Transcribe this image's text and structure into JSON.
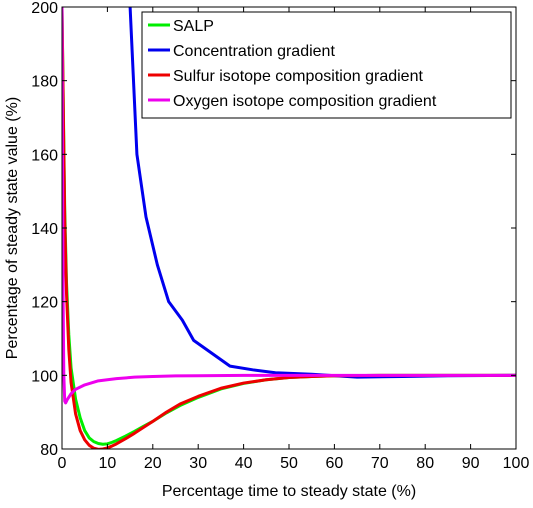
{
  "chart_data": {
    "type": "line",
    "title": "",
    "xlabel": "Percentage time to steady state (%)",
    "ylabel": "Percentage of steady state value (%)",
    "xlim": [
      0,
      100
    ],
    "ylim": [
      80,
      200
    ],
    "xticks": [
      0,
      10,
      20,
      30,
      40,
      50,
      60,
      70,
      80,
      90,
      100
    ],
    "yticks": [
      80,
      100,
      120,
      140,
      160,
      180,
      200
    ],
    "grid": false,
    "legend_position": "top-right",
    "series": [
      {
        "name": "SALP",
        "color": "#00ee00",
        "x": [
          0,
          0.3,
          0.6,
          1,
          1.5,
          2,
          3,
          4,
          5,
          6,
          7,
          8,
          9,
          10,
          11,
          12,
          14,
          16,
          18,
          20,
          23,
          26,
          30,
          35,
          40,
          45,
          50,
          55,
          60,
          70,
          80,
          90,
          100
        ],
        "y": [
          200,
          172,
          145,
          125,
          111,
          102,
          93.5,
          88.5,
          85,
          83,
          82,
          81.5,
          81.3,
          81.4,
          81.8,
          82.3,
          83.5,
          84.8,
          86.2,
          87.5,
          89.8,
          91.8,
          94,
          96.3,
          97.8,
          98.8,
          99.4,
          99.7,
          99.9,
          100,
          100,
          100,
          100
        ]
      },
      {
        "name": "Concentration gradient",
        "color": "#0000ee",
        "x": [
          15,
          16.5,
          18.5,
          21,
          23.5,
          26.5,
          29,
          33,
          37,
          42,
          47,
          55,
          65,
          75,
          85,
          100
        ],
        "y": [
          200,
          160,
          143,
          130,
          120,
          115,
          109.5,
          106,
          102.5,
          101.5,
          100.7,
          100.3,
          99.5,
          99.7,
          99.9,
          100
        ]
      },
      {
        "name": "Sulfur isotope composition gradient",
        "color": "#ee0000",
        "x": [
          0,
          0.3,
          0.6,
          1,
          1.5,
          2,
          3,
          4,
          5,
          6,
          7,
          8,
          9,
          10,
          11,
          12,
          14,
          16,
          18,
          20,
          23,
          26,
          30,
          35,
          40,
          45,
          50,
          55,
          60,
          70,
          80,
          90,
          100
        ],
        "y": [
          200,
          170,
          142,
          122,
          107,
          98,
          89.5,
          85,
          82.5,
          81,
          80.2,
          79.9,
          80,
          80.3,
          80.8,
          81.4,
          82.8,
          84.3,
          85.9,
          87.5,
          90,
          92.2,
          94.3,
          96.5,
          97.9,
          98.8,
          99.4,
          99.7,
          99.9,
          100,
          100,
          100,
          100
        ]
      },
      {
        "name": "Oxygen isotope composition gradient",
        "color": "#ee00ee",
        "x": [
          0,
          0.1,
          0.25,
          0.4,
          0.6,
          0.8,
          1.2,
          2,
          3,
          5,
          8,
          12,
          16,
          20,
          25,
          30,
          40,
          50,
          60,
          70,
          80,
          90,
          100
        ],
        "y": [
          200,
          160,
          120,
          100,
          93,
          92.5,
          93.5,
          95,
          96.2,
          97.4,
          98.5,
          99.1,
          99.5,
          99.7,
          99.85,
          99.9,
          100,
          100,
          100,
          100,
          100,
          100,
          100
        ]
      }
    ]
  }
}
